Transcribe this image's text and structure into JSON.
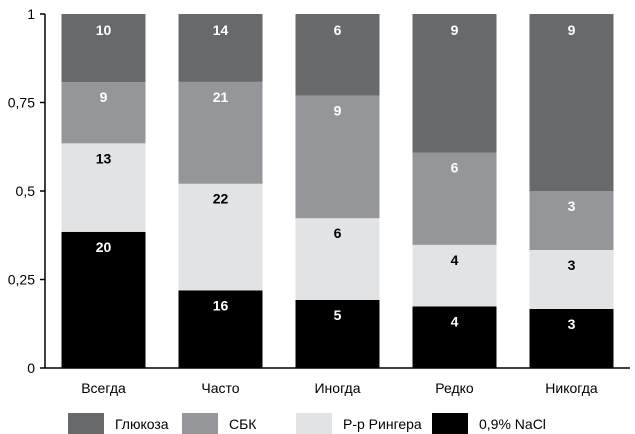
{
  "chart_data": {
    "type": "bar",
    "stacked": true,
    "normalized": true,
    "categories": [
      "Всегда",
      "Часто",
      "Иногда",
      "Редко",
      "Никогда"
    ],
    "series": [
      {
        "name": "0,9% NaCl",
        "color": "#000000",
        "label_color": "#ffffff",
        "values": [
          20,
          16,
          5,
          4,
          3
        ]
      },
      {
        "name": "Р-р Рингера",
        "color": "#e2e3e5",
        "label_color": "#000000",
        "values": [
          13,
          22,
          6,
          4,
          3
        ]
      },
      {
        "name": "СБК",
        "color": "#959699",
        "label_color": "#ffffff",
        "values": [
          9,
          21,
          9,
          6,
          3
        ]
      },
      {
        "name": "Глюкоза",
        "color": "#68696b",
        "label_color": "#ffffff",
        "values": [
          10,
          14,
          6,
          9,
          9
        ]
      }
    ],
    "legend_order": [
      "Глюкоза",
      "СБК",
      "Р-р Рингера",
      "0,9% NaCl"
    ],
    "legend_position": "bottom",
    "ylim": [
      0,
      1
    ],
    "yticks": [
      "0",
      "0,25",
      "0,5",
      "0,75",
      "1"
    ],
    "grid": false,
    "title": "",
    "xlabel": "",
    "ylabel": ""
  }
}
